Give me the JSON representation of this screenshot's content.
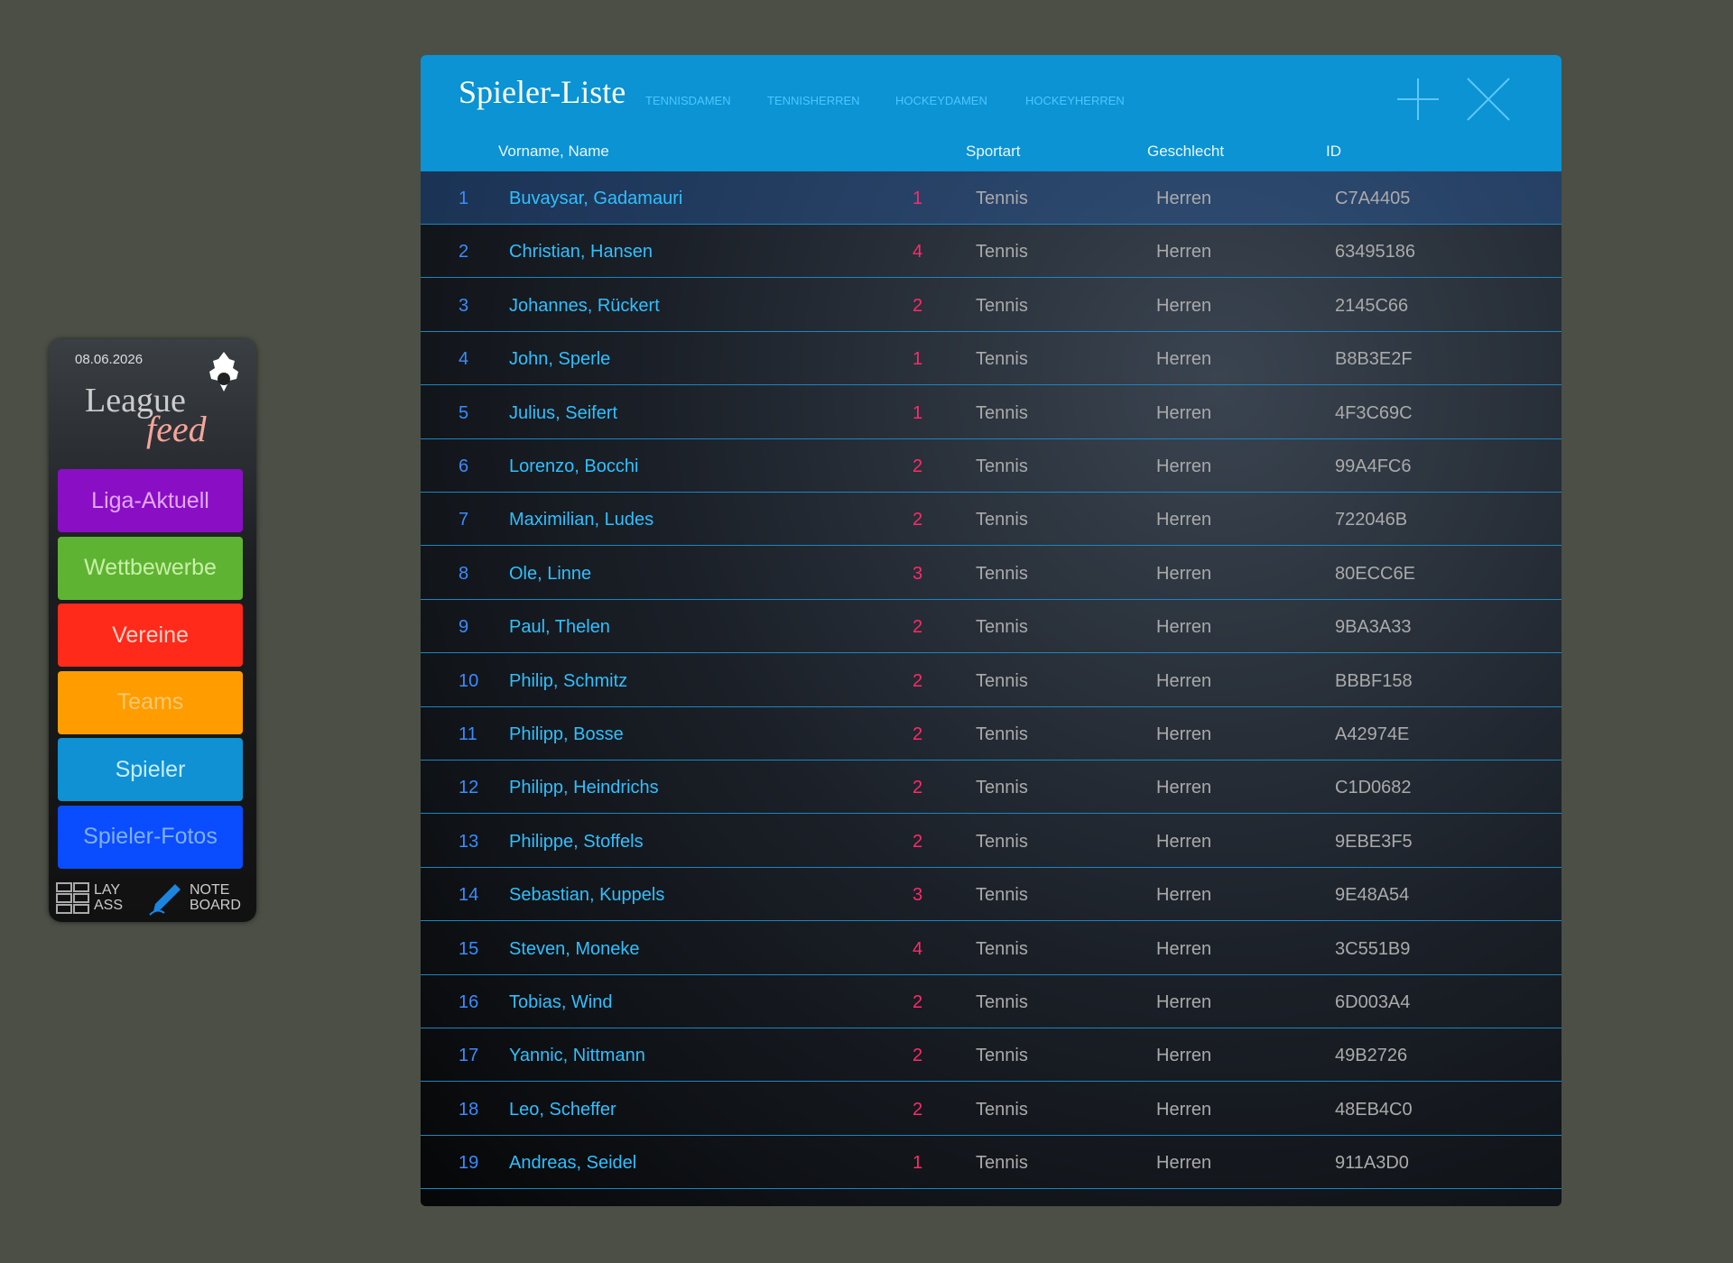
{
  "sidebar": {
    "date": "08.06.2026",
    "logo": {
      "line1": "League",
      "line2": "feed"
    },
    "menu": [
      {
        "label": "Liga-Aktuell",
        "color": "#8a0fc4",
        "text": "#e0a8ff"
      },
      {
        "label": "Wettbewerbe",
        "color": "#5fb332",
        "text": "#c8f0a8"
      },
      {
        "label": "Vereine",
        "color": "#ff2a1a",
        "text": "#ffd0c8"
      },
      {
        "label": "Teams",
        "color": "#ff9c00",
        "text": "#ffc870"
      },
      {
        "label": "Spieler",
        "color": "#0f91d4",
        "text": "#c8ecff"
      },
      {
        "label": "Spieler-Fotos",
        "color": "#0a4cff",
        "text": "#7fb0ff"
      }
    ],
    "tools": [
      {
        "line1": "LAY",
        "line2": "ASS"
      },
      {
        "line1": "NOTE",
        "line2": "BOARD"
      }
    ]
  },
  "panel": {
    "title": "Spieler-Liste",
    "tabs": [
      "TENNISDAMEN",
      "TENNISHERREN",
      "HOCKEYDAMEN",
      "HOCKEYHERREN"
    ],
    "columns": [
      "Vorname, Name",
      "Sportart",
      "Geschlecht",
      "ID"
    ],
    "rows": [
      [
        "1",
        "Buvaysar, Gadamauri",
        "1",
        "Tennis",
        "Herren",
        "C7A4405"
      ],
      [
        "2",
        "Christian, Hansen",
        "4",
        "Tennis",
        "Herren",
        "63495186"
      ],
      [
        "3",
        "Johannes, Rückert",
        "2",
        "Tennis",
        "Herren",
        "2145C66"
      ],
      [
        "4",
        "John, Sperle",
        "1",
        "Tennis",
        "Herren",
        "B8B3E2F"
      ],
      [
        "5",
        "Julius, Seifert",
        "1",
        "Tennis",
        "Herren",
        "4F3C69C"
      ],
      [
        "6",
        "Lorenzo, Bocchi",
        "2",
        "Tennis",
        "Herren",
        "99A4FC6"
      ],
      [
        "7",
        "Maximilian, Ludes",
        "2",
        "Tennis",
        "Herren",
        "722046B"
      ],
      [
        "8",
        "Ole, Linne",
        "3",
        "Tennis",
        "Herren",
        "80ECC6E"
      ],
      [
        "9",
        "Paul, Thelen",
        "2",
        "Tennis",
        "Herren",
        "9BA3A33"
      ],
      [
        "10",
        "Philip, Schmitz",
        "2",
        "Tennis",
        "Herren",
        "BBBF158"
      ],
      [
        "11",
        "Philipp, Bosse",
        "2",
        "Tennis",
        "Herren",
        "A42974E"
      ],
      [
        "12",
        "Philipp, Heindrichs",
        "2",
        "Tennis",
        "Herren",
        "C1D0682"
      ],
      [
        "13",
        "Philippe, Stoffels",
        "2",
        "Tennis",
        "Herren",
        "9EBE3F5"
      ],
      [
        "14",
        "Sebastian, Kuppels",
        "3",
        "Tennis",
        "Herren",
        "9E48A54"
      ],
      [
        "15",
        "Steven, Moneke",
        "4",
        "Tennis",
        "Herren",
        "3C551B9"
      ],
      [
        "16",
        "Tobias, Wind",
        "2",
        "Tennis",
        "Herren",
        "6D003A4"
      ],
      [
        "17",
        "Yannic, Nittmann",
        "2",
        "Tennis",
        "Herren",
        "49B2726"
      ],
      [
        "18",
        "Leo, Scheffer",
        "2",
        "Tennis",
        "Herren",
        "48EB4C0"
      ],
      [
        "19",
        "Andreas, Seidel",
        "1",
        "Tennis",
        "Herren",
        "911A3D0"
      ]
    ]
  }
}
